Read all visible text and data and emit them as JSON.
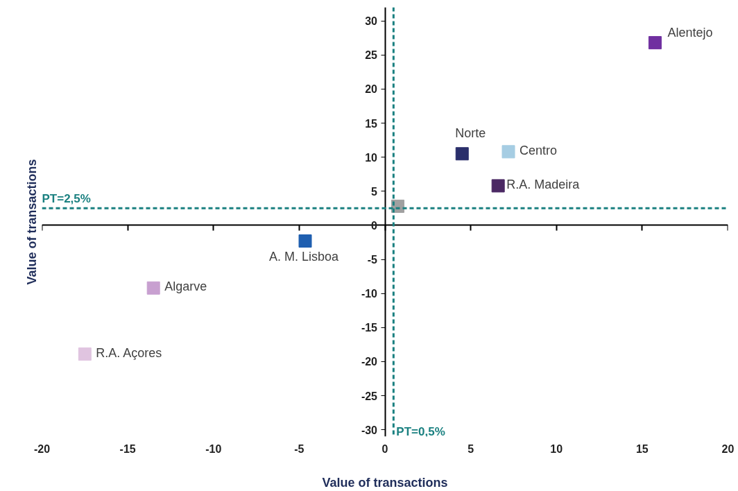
{
  "chart_data": {
    "type": "scatter",
    "xlabel": "Value of transactions",
    "ylabel": "Value of transactions",
    "marker": "square",
    "legend": false,
    "xlim": [
      -20,
      20
    ],
    "xticks": [
      -20,
      -15,
      -10,
      -5,
      0,
      5,
      10,
      15,
      20
    ],
    "ylim": [
      -31,
      32
    ],
    "yticks": [
      -30,
      -25,
      -20,
      -15,
      -10,
      -5,
      0,
      5,
      10,
      15,
      20,
      25,
      30
    ],
    "series": [
      {
        "name": "Alentejo",
        "color": "#7030a0",
        "x": [
          15.75
        ],
        "values": [
          26.8
        ]
      },
      {
        "name": "Norte",
        "color": "#2a2f6b",
        "x": [
          4.5
        ],
        "values": [
          10.5
        ]
      },
      {
        "name": "Centro",
        "color": "#a6cde3",
        "x": [
          7.2
        ],
        "values": [
          10.8
        ]
      },
      {
        "name": "R.A. Madeira",
        "color": "#4b2863",
        "x": [
          6.6
        ],
        "values": [
          5.8
        ]
      },
      {
        "name": "A. M. Lisboa",
        "color": "#1f5fb0",
        "x": [
          -4.65
        ],
        "values": [
          -2.3
        ]
      },
      {
        "name": "Algarve",
        "color": "#c8a0d0",
        "x": [
          -13.5
        ],
        "values": [
          -9.2
        ]
      },
      {
        "name": "R.A. Açores",
        "color": "#e0c4e0",
        "x": [
          -17.5
        ],
        "values": [
          -18.9
        ]
      },
      {
        "color": "#a0a0a0",
        "x": [
          0.75
        ],
        "values": [
          2.8
        ]
      }
    ],
    "ref_lines": [
      {
        "axis": "x",
        "value": 0.5,
        "label": "PT=0,5%",
        "color": "#1a8080",
        "line_style": "dashed"
      },
      {
        "axis": "y",
        "value": 2.5,
        "label": "PT=2,5%",
        "color": "#1a8080",
        "line_style": "dashed"
      }
    ]
  }
}
